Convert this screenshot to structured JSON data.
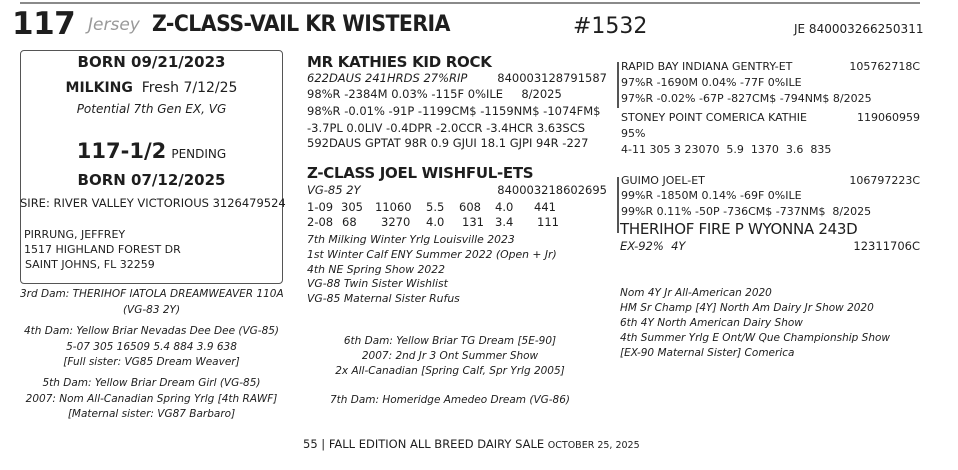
{
  "header": {
    "lot": "117",
    "breed": "Jersey",
    "name": "Z-CLASS-VAIL KR WISTERIA",
    "reg_number": "#1532",
    "id": "JE  840003266250311"
  },
  "box": {
    "born": "BORN  09/21/2023",
    "milking_label": "MILKING",
    "milking_value": "Fresh 7/12/25",
    "potential": "Potential 7th Gen EX, VG",
    "calf_lot": "117-1/2",
    "calf_status": "PENDING",
    "calf_born": "BORN  07/12/2025",
    "calf_sire": "SIRE: RIVER VALLEY VICTORIOUS 3126479524",
    "consignor": [
      "PIRRUNG, JEFFREY",
      "1517 HIGHLAND FOREST DR",
      "SAINT JOHNS, FL 32259"
    ]
  },
  "sire": {
    "name": "MR KATHIES KID ROCK",
    "line1": "622DAUS 241HRDS 27%RIP",
    "id": "840003128791587",
    "lines": [
      "98%R -2384M 0.03% -115F 0%ILE     8/2025",
      "98%R -0.01% -91P -1199CM$ -1159NM$ -1074FM$",
      "-3.7PL 0.0LIV -0.4DPR -2.0CCR -3.4HCR 3.63SCS",
      "592DAUS GPTAT 98R 0.9  GJUI 18.1  GJPI 94R -227"
    ]
  },
  "sire_sire": {
    "name": "RAPID BAY INDIANA GENTRY-ET",
    "id": "105762718C",
    "lines": [
      "97%R -1690M 0.04% -77F 0%ILE",
      "97%R -0.02% -67P -827CM$ -794NM$ 8/2025"
    ]
  },
  "sire_dam": {
    "name": "STONEY POINT COMERICA KATHIE",
    "id": "119060959",
    "lines": [
      "95%",
      "4-11 305 3 23070  5.9  1370  3.6  835"
    ]
  },
  "dam": {
    "name": "Z-CLASS JOEL WISHFUL-ETS",
    "class": "VG-85 2Y",
    "id": "840003218602695",
    "records": [
      [
        "1-09",
        "305",
        "11060",
        "5.5",
        "608",
        "4.0",
        "441"
      ],
      [
        "2-08",
        "68",
        "3270",
        "4.0",
        "131",
        "3.4",
        "111"
      ]
    ],
    "notes": [
      "7th Milking Winter Yrlg Louisville 2023",
      "1st Winter Calf ENY Summer 2022 (Open + Jr)",
      "4th NE Spring Show 2022",
      "VG-88 Twin Sister Wishlist",
      "VG-85 Maternal Sister Rufus"
    ]
  },
  "dam_sire": {
    "name": "GUIMO JOEL-ET",
    "id": "106797223C",
    "lines": [
      "99%R -1850M 0.14% -69F 0%ILE",
      "99%R 0.11% -50P -736CM$ -737NM$  8/2025"
    ]
  },
  "dam_dam": {
    "name": "THERIHOF FIRE P WYONNA 243D",
    "class": "EX-92%  4Y",
    "id": "12311706C",
    "notes": [
      "Nom 4Y Jr All-American 2020",
      "HM Sr Champ [4Y] North Am Dairy Jr Show 2020",
      "6th 4Y North American Dairy Show",
      "4th Summer Yrlg E Ont/W Que Championship Show",
      "[EX-90 Maternal Sister] Comerica"
    ]
  },
  "dams_left": [
    [
      "3rd Dam: THERIHOF IATOLA DREAMWEAVER 110A",
      "(VG-83 2Y)"
    ],
    [
      "4th Dam: Yellow Briar Nevadas Dee Dee  (VG-85)",
      "5-07 305 16509 5.4 884 3.9 638",
      "[Full sister: VG85 Dream Weaver]"
    ],
    [
      "5th Dam: Yellow Briar Dream Girl  (VG-85)",
      "2007: Nom All-Canadian Spring Yrlg [4th RAWF]",
      "[Maternal sister: VG87 Barbaro]"
    ]
  ],
  "dams_center": [
    [
      "6th Dam: Yellow Briar TG Dream  [5E-90]",
      "2007: 2nd Jr 3 Ont Summer Show",
      "2x All-Canadian [Spring Calf, Spr Yrlg 2005]"
    ],
    [
      "7th Dam: Homeridge Amedeo Dream  (VG-86)"
    ]
  ],
  "footer": {
    "page": "55",
    "separator": "|",
    "title": "FALL EDITION ALL BREED DAIRY SALE",
    "date": "OCTOBER 25, 2025"
  }
}
